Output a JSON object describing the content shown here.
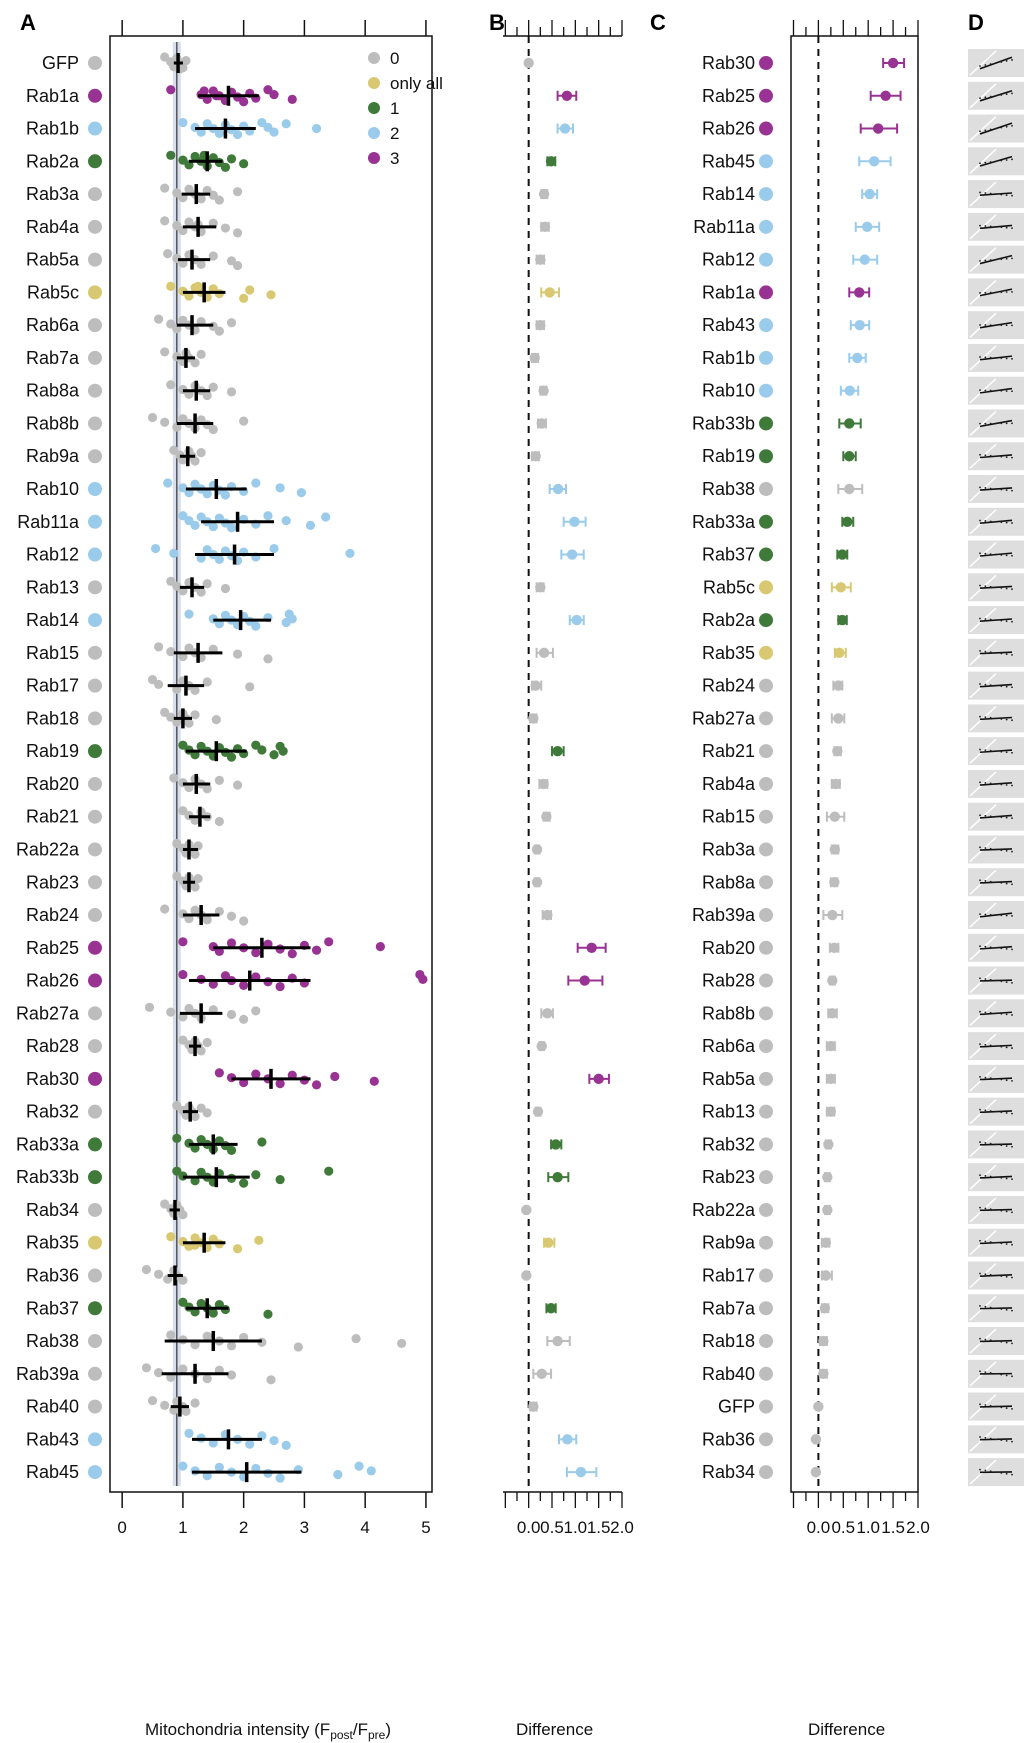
{
  "chart_data": [
    {
      "panel": "A",
      "type": "scatter",
      "xlabel": "Mitochondria intensity (F",
      "xlabel_sub1": "post",
      "xlabel_mid": "/F",
      "xlabel_sub2": "pre",
      "xlabel_end": ")",
      "xlim": [
        -0.2,
        5.1
      ],
      "xticks": [
        "0",
        "1",
        "2",
        "3",
        "4",
        "5"
      ],
      "reference_line": 0.9,
      "legend": [
        "0",
        "only all",
        "1",
        "2",
        "3"
      ],
      "colors": {
        "0": "#bdbdbd",
        "only all": "#d9c872",
        "1": "#3f7a3a",
        "2": "#9acbea",
        "3": "#993393"
      },
      "categories": [
        "GFP",
        "Rab1a",
        "Rab1b",
        "Rab2a",
        "Rab3a",
        "Rab4a",
        "Rab5a",
        "Rab5c",
        "Rab6a",
        "Rab7a",
        "Rab8a",
        "Rab8b",
        "Rab9a",
        "Rab10",
        "Rab11a",
        "Rab12",
        "Rab13",
        "Rab14",
        "Rab15",
        "Rab17",
        "Rab18",
        "Rab19",
        "Rab20",
        "Rab21",
        "Rab22a",
        "Rab23",
        "Rab24",
        "Rab25",
        "Rab26",
        "Rab27a",
        "Rab28",
        "Rab30",
        "Rab32",
        "Rab33a",
        "Rab33b",
        "Rab34",
        "Rab35",
        "Rab36",
        "Rab37",
        "Rab38",
        "Rab39a",
        "Rab40",
        "Rab43",
        "Rab45"
      ],
      "class": [
        "0",
        "3",
        "2",
        "1",
        "0",
        "0",
        "0",
        "only all",
        "0",
        "0",
        "0",
        "0",
        "0",
        "2",
        "2",
        "2",
        "0",
        "2",
        "0",
        "0",
        "0",
        "1",
        "0",
        "0",
        "0",
        "0",
        "0",
        "3",
        "3",
        "0",
        "0",
        "3",
        "0",
        "1",
        "1",
        "0",
        "only all",
        "0",
        "1",
        "0",
        "0",
        "0",
        "2",
        "2"
      ],
      "mean": [
        0.92,
        1.75,
        1.7,
        1.4,
        1.22,
        1.25,
        1.15,
        1.35,
        1.15,
        1.05,
        1.22,
        1.2,
        1.08,
        1.55,
        1.9,
        1.85,
        1.15,
        1.95,
        1.25,
        1.05,
        1.0,
        1.55,
        1.22,
        1.28,
        1.1,
        1.1,
        1.3,
        2.3,
        2.1,
        1.3,
        1.2,
        2.45,
        1.12,
        1.5,
        1.55,
        0.87,
        1.35,
        0.87,
        1.4,
        1.5,
        1.2,
        0.95,
        1.75,
        2.05
      ],
      "sd_low": [
        0.85,
        1.25,
        1.2,
        1.1,
        0.98,
        1.0,
        0.92,
        1.0,
        0.9,
        0.9,
        1.0,
        0.9,
        0.95,
        1.05,
        1.3,
        1.2,
        0.95,
        1.5,
        0.85,
        0.75,
        0.85,
        1.05,
        1.0,
        1.1,
        1.0,
        1.0,
        1.0,
        1.5,
        1.1,
        0.95,
        1.1,
        1.8,
        1.0,
        1.1,
        1.0,
        0.78,
        1.0,
        0.75,
        1.05,
        0.7,
        0.65,
        0.8,
        1.15,
        1.15
      ],
      "sd_high": [
        1.0,
        2.25,
        2.2,
        1.65,
        1.45,
        1.55,
        1.45,
        1.7,
        1.5,
        1.2,
        1.45,
        1.5,
        1.2,
        2.05,
        2.5,
        2.5,
        1.35,
        2.45,
        1.65,
        1.35,
        1.15,
        2.05,
        1.45,
        1.45,
        1.25,
        1.2,
        1.6,
        3.1,
        3.1,
        1.65,
        1.3,
        3.1,
        1.25,
        1.9,
        2.1,
        0.95,
        1.7,
        1.0,
        1.75,
        2.3,
        1.75,
        1.1,
        2.3,
        2.95
      ],
      "points": [
        [
          0.7,
          0.8,
          0.85,
          0.9,
          0.95,
          1.0,
          0.9,
          0.85,
          0.95,
          1.05
        ],
        [
          0.8,
          1.3,
          1.4,
          1.5,
          1.6,
          1.7,
          1.8,
          1.9,
          2.0,
          2.1,
          2.2,
          2.4,
          2.5,
          2.8,
          1.35,
          1.55
        ],
        [
          1.0,
          1.2,
          1.3,
          1.4,
          1.5,
          1.6,
          1.7,
          1.8,
          1.9,
          2.0,
          2.1,
          2.3,
          2.4,
          2.5,
          2.7,
          3.2
        ],
        [
          0.8,
          1.0,
          1.1,
          1.2,
          1.3,
          1.4,
          1.5,
          1.6,
          1.7,
          1.8,
          2.0,
          1.35
        ],
        [
          0.7,
          0.9,
          1.0,
          1.1,
          1.2,
          1.3,
          1.4,
          1.5,
          1.6,
          1.9,
          1.25
        ],
        [
          0.7,
          0.9,
          1.0,
          1.1,
          1.2,
          1.3,
          1.5,
          1.7,
          1.9,
          1.25
        ],
        [
          0.75,
          0.9,
          1.0,
          1.1,
          1.2,
          1.3,
          1.5,
          1.8,
          1.9
        ],
        [
          0.8,
          1.0,
          1.1,
          1.2,
          1.3,
          1.4,
          1.5,
          1.6,
          2.0,
          2.1,
          2.45,
          1.25
        ],
        [
          0.6,
          0.8,
          0.9,
          1.0,
          1.1,
          1.2,
          1.3,
          1.5,
          1.6,
          1.8
        ],
        [
          0.7,
          0.9,
          1.0,
          1.05,
          1.1,
          1.2,
          1.3
        ],
        [
          0.8,
          1.0,
          1.1,
          1.2,
          1.3,
          1.4,
          1.5,
          1.8
        ],
        [
          0.5,
          0.7,
          0.9,
          1.0,
          1.1,
          1.2,
          1.3,
          1.4,
          1.5,
          2.0
        ],
        [
          0.85,
          0.95,
          1.0,
          1.1,
          1.15,
          1.2,
          1.3
        ],
        [
          0.75,
          1.0,
          1.1,
          1.2,
          1.3,
          1.4,
          1.5,
          1.6,
          1.7,
          1.8,
          2.0,
          2.2,
          2.6,
          2.95
        ],
        [
          1.0,
          1.1,
          1.2,
          1.3,
          1.4,
          1.5,
          1.6,
          1.7,
          1.8,
          2.0,
          2.2,
          2.4,
          2.7,
          3.1,
          3.35
        ],
        [
          0.55,
          0.85,
          1.3,
          1.4,
          1.5,
          1.6,
          1.7,
          1.8,
          1.9,
          2.0,
          2.2,
          2.5,
          3.75
        ],
        [
          0.8,
          0.9,
          1.0,
          1.1,
          1.2,
          1.3,
          1.4,
          1.7
        ],
        [
          1.1,
          1.5,
          1.6,
          1.7,
          1.8,
          1.9,
          2.0,
          2.1,
          2.2,
          2.4,
          2.7,
          2.75,
          2.8
        ],
        [
          0.6,
          0.8,
          1.0,
          1.1,
          1.2,
          1.3,
          1.5,
          1.9,
          2.4
        ],
        [
          0.5,
          0.6,
          0.9,
          1.0,
          1.1,
          1.2,
          1.4,
          2.1
        ],
        [
          0.7,
          0.8,
          0.9,
          1.0,
          1.05,
          1.1,
          1.2,
          1.55
        ],
        [
          1.0,
          1.1,
          1.2,
          1.3,
          1.4,
          1.5,
          1.6,
          1.7,
          1.8,
          1.9,
          2.0,
          2.2,
          2.3,
          2.5,
          2.6,
          2.65
        ],
        [
          0.85,
          1.0,
          1.1,
          1.2,
          1.3,
          1.4,
          1.6,
          1.9
        ],
        [
          1.0,
          1.1,
          1.2,
          1.3,
          1.4,
          1.6
        ],
        [
          0.9,
          1.0,
          1.05,
          1.1,
          1.15,
          1.2,
          1.25
        ],
        [
          0.9,
          1.0,
          1.05,
          1.1,
          1.15,
          1.2,
          1.25
        ],
        [
          0.7,
          1.0,
          1.1,
          1.2,
          1.3,
          1.4,
          1.6,
          1.8,
          2.0
        ],
        [
          1.0,
          1.5,
          1.6,
          1.8,
          2.0,
          2.2,
          2.4,
          2.6,
          2.8,
          3.0,
          3.2,
          3.4,
          4.25
        ],
        [
          1.0,
          1.3,
          1.5,
          1.7,
          1.8,
          2.0,
          2.2,
          2.4,
          2.6,
          2.8,
          3.0,
          4.9,
          4.95
        ],
        [
          0.45,
          0.8,
          1.0,
          1.1,
          1.2,
          1.3,
          1.5,
          1.8,
          2.0,
          2.2
        ],
        [
          1.0,
          1.1,
          1.15,
          1.2,
          1.25,
          1.3,
          1.4
        ],
        [
          1.6,
          1.8,
          2.0,
          2.2,
          2.4,
          2.6,
          2.8,
          3.0,
          3.2,
          3.5,
          4.15
        ],
        [
          0.9,
          1.0,
          1.05,
          1.1,
          1.15,
          1.2,
          1.3,
          1.4
        ],
        [
          0.9,
          1.1,
          1.2,
          1.3,
          1.4,
          1.5,
          1.6,
          1.7,
          1.8,
          2.3
        ],
        [
          0.9,
          1.0,
          1.2,
          1.3,
          1.4,
          1.5,
          1.6,
          1.8,
          2.0,
          2.2,
          2.6,
          3.4
        ],
        [
          0.7,
          0.8,
          0.85,
          0.9,
          0.95,
          1.0
        ],
        [
          0.8,
          1.0,
          1.1,
          1.2,
          1.3,
          1.4,
          1.5,
          1.6,
          1.9,
          2.25,
          1.2
        ],
        [
          0.4,
          0.6,
          0.75,
          0.85,
          0.9,
          1.0
        ],
        [
          1.0,
          1.1,
          1.2,
          1.3,
          1.4,
          1.5,
          1.6,
          1.7,
          2.4
        ],
        [
          0.8,
          1.0,
          1.2,
          1.4,
          1.6,
          1.8,
          2.0,
          2.3,
          2.9,
          3.85,
          4.6
        ],
        [
          0.4,
          0.6,
          0.8,
          1.0,
          1.2,
          1.4,
          1.6,
          1.8,
          2.45
        ],
        [
          0.5,
          0.7,
          0.85,
          0.9,
          1.0,
          1.05,
          1.2
        ],
        [
          1.1,
          1.3,
          1.5,
          1.7,
          1.9,
          2.1,
          2.3,
          2.5,
          2.7
        ],
        [
          1.0,
          1.2,
          1.4,
          1.6,
          1.8,
          2.0,
          2.2,
          2.4,
          2.6,
          2.9,
          3.55,
          3.9,
          4.1
        ]
      ]
    },
    {
      "panel": "B",
      "type": "scatter",
      "xlabel": "Difference",
      "xlim": [
        -0.55,
        2.0
      ],
      "xticks": [
        "0.0",
        "0.5",
        "1.0",
        "1.5",
        "2.0"
      ],
      "reference_line": 0,
      "categories": [
        "GFP",
        "Rab1a",
        "Rab1b",
        "Rab2a",
        "Rab3a",
        "Rab4a",
        "Rab5a",
        "Rab5c",
        "Rab6a",
        "Rab7a",
        "Rab8a",
        "Rab8b",
        "Rab9a",
        "Rab10",
        "Rab11a",
        "Rab12",
        "Rab13",
        "Rab14",
        "Rab15",
        "Rab17",
        "Rab18",
        "Rab19",
        "Rab20",
        "Rab21",
        "Rab22a",
        "Rab23",
        "Rab24",
        "Rab25",
        "Rab26",
        "Rab27a",
        "Rab28",
        "Rab30",
        "Rab32",
        "Rab33a",
        "Rab33b",
        "Rab34",
        "Rab35",
        "Rab36",
        "Rab37",
        "Rab38",
        "Rab39a",
        "Rab40",
        "Rab43",
        "Rab45"
      ],
      "class": [
        "0",
        "3",
        "2",
        "1",
        "0",
        "0",
        "0",
        "only all",
        "0",
        "0",
        "0",
        "0",
        "0",
        "2",
        "2",
        "2",
        "0",
        "2",
        "0",
        "0",
        "0",
        "1",
        "0",
        "0",
        "0",
        "0",
        "0",
        "3",
        "3",
        "0",
        "0",
        "3",
        "0",
        "1",
        "1",
        "0",
        "only all",
        "0",
        "1",
        "0",
        "0",
        "0",
        "2",
        "2"
      ],
      "values": [
        0.0,
        0.82,
        0.78,
        0.48,
        0.33,
        0.35,
        0.25,
        0.45,
        0.25,
        0.13,
        0.32,
        0.28,
        0.15,
        0.63,
        0.98,
        0.93,
        0.25,
        1.03,
        0.33,
        0.15,
        0.1,
        0.62,
        0.32,
        0.38,
        0.18,
        0.18,
        0.4,
        1.35,
        1.2,
        0.4,
        0.28,
        1.5,
        0.2,
        0.58,
        0.62,
        -0.05,
        0.42,
        -0.05,
        0.48,
        0.62,
        0.28,
        0.1,
        0.83,
        1.12
      ],
      "err_low": [
        0.0,
        0.62,
        0.62,
        0.4,
        0.27,
        0.27,
        0.17,
        0.27,
        0.17,
        0.07,
        0.25,
        0.2,
        0.07,
        0.45,
        0.75,
        0.7,
        0.17,
        0.88,
        0.17,
        0.07,
        0.03,
        0.5,
        0.23,
        0.32,
        0.13,
        0.13,
        0.3,
        1.05,
        0.85,
        0.27,
        0.23,
        1.3,
        0.15,
        0.48,
        0.42,
        -0.08,
        0.33,
        -0.08,
        0.38,
        0.4,
        0.1,
        0.03,
        0.65,
        0.82
      ],
      "err_high": [
        0.0,
        1.02,
        0.95,
        0.57,
        0.4,
        0.43,
        0.33,
        0.65,
        0.33,
        0.2,
        0.38,
        0.37,
        0.22,
        0.8,
        1.22,
        1.18,
        0.32,
        1.18,
        0.52,
        0.27,
        0.17,
        0.75,
        0.4,
        0.45,
        0.23,
        0.23,
        0.48,
        1.65,
        1.58,
        0.52,
        0.33,
        1.72,
        0.25,
        0.7,
        0.85,
        -0.02,
        0.55,
        -0.02,
        0.58,
        0.88,
        0.48,
        0.17,
        1.02,
        1.45
      ]
    },
    {
      "panel": "C",
      "type": "scatter",
      "xlabel": "Difference",
      "xlim": [
        -0.55,
        2.0
      ],
      "xticks": [
        "0.0",
        "0.5",
        "1.0",
        "1.5",
        "2.0"
      ],
      "reference_line": 0,
      "categories": [
        "Rab30",
        "Rab25",
        "Rab26",
        "Rab45",
        "Rab14",
        "Rab11a",
        "Rab12",
        "Rab1a",
        "Rab43",
        "Rab1b",
        "Rab10",
        "Rab33b",
        "Rab19",
        "Rab38",
        "Rab33a",
        "Rab37",
        "Rab5c",
        "Rab2a",
        "Rab35",
        "Rab24",
        "Rab27a",
        "Rab21",
        "Rab4a",
        "Rab15",
        "Rab3a",
        "Rab8a",
        "Rab39a",
        "Rab20",
        "Rab28",
        "Rab8b",
        "Rab6a",
        "Rab5a",
        "Rab13",
        "Rab32",
        "Rab23",
        "Rab22a",
        "Rab9a",
        "Rab17",
        "Rab7a",
        "Rab18",
        "Rab40",
        "GFP",
        "Rab36",
        "Rab34"
      ],
      "class": [
        "3",
        "3",
        "3",
        "2",
        "2",
        "2",
        "2",
        "3",
        "2",
        "2",
        "2",
        "1",
        "1",
        "0",
        "1",
        "1",
        "only all",
        "1",
        "only all",
        "0",
        "0",
        "0",
        "0",
        "0",
        "0",
        "0",
        "0",
        "0",
        "0",
        "0",
        "0",
        "0",
        "0",
        "0",
        "0",
        "0",
        "0",
        "0",
        "0",
        "0",
        "0",
        "0",
        "0",
        "0"
      ],
      "values": [
        1.5,
        1.35,
        1.2,
        1.12,
        1.03,
        0.98,
        0.93,
        0.82,
        0.83,
        0.78,
        0.63,
        0.62,
        0.62,
        0.62,
        0.58,
        0.48,
        0.45,
        0.48,
        0.42,
        0.4,
        0.4,
        0.38,
        0.35,
        0.33,
        0.33,
        0.32,
        0.28,
        0.32,
        0.28,
        0.28,
        0.25,
        0.25,
        0.25,
        0.2,
        0.18,
        0.18,
        0.15,
        0.15,
        0.13,
        0.1,
        0.1,
        0.0,
        -0.05,
        -0.05
      ],
      "err_low": [
        1.3,
        1.05,
        0.85,
        0.82,
        0.88,
        0.75,
        0.7,
        0.62,
        0.65,
        0.62,
        0.45,
        0.42,
        0.5,
        0.4,
        0.48,
        0.38,
        0.27,
        0.4,
        0.33,
        0.3,
        0.27,
        0.32,
        0.27,
        0.17,
        0.27,
        0.25,
        0.1,
        0.23,
        0.23,
        0.2,
        0.17,
        0.17,
        0.17,
        0.15,
        0.13,
        0.13,
        0.07,
        0.07,
        0.07,
        0.03,
        0.03,
        0.0,
        -0.08,
        -0.08
      ],
      "err_high": [
        1.72,
        1.65,
        1.58,
        1.45,
        1.18,
        1.22,
        1.18,
        1.02,
        1.02,
        0.95,
        0.8,
        0.85,
        0.75,
        0.88,
        0.7,
        0.58,
        0.65,
        0.57,
        0.55,
        0.48,
        0.52,
        0.45,
        0.43,
        0.52,
        0.4,
        0.38,
        0.48,
        0.4,
        0.33,
        0.37,
        0.33,
        0.33,
        0.32,
        0.25,
        0.23,
        0.23,
        0.22,
        0.27,
        0.2,
        0.17,
        0.17,
        0.0,
        -0.02,
        -0.02
      ]
    },
    {
      "panel": "D",
      "type": "scatter",
      "description_slope": [
        1.6,
        1.4,
        1.5,
        1.3,
        0.3,
        0.4,
        1.1,
        0.9,
        0.7,
        0.5,
        0.6,
        0.8,
        0.35,
        0.3,
        0.4,
        0.4,
        0.25,
        0.3,
        0.2,
        0.3,
        0.25,
        0.3,
        0.3,
        0.35,
        0.15,
        0.2,
        0.5,
        0.3,
        0.1,
        0.3,
        0.2,
        0.2,
        0.2,
        0.1,
        0.2,
        0.1,
        0.2,
        0.2,
        0.1,
        0.1,
        0.05,
        0.1,
        0.1,
        0.05
      ]
    }
  ]
}
